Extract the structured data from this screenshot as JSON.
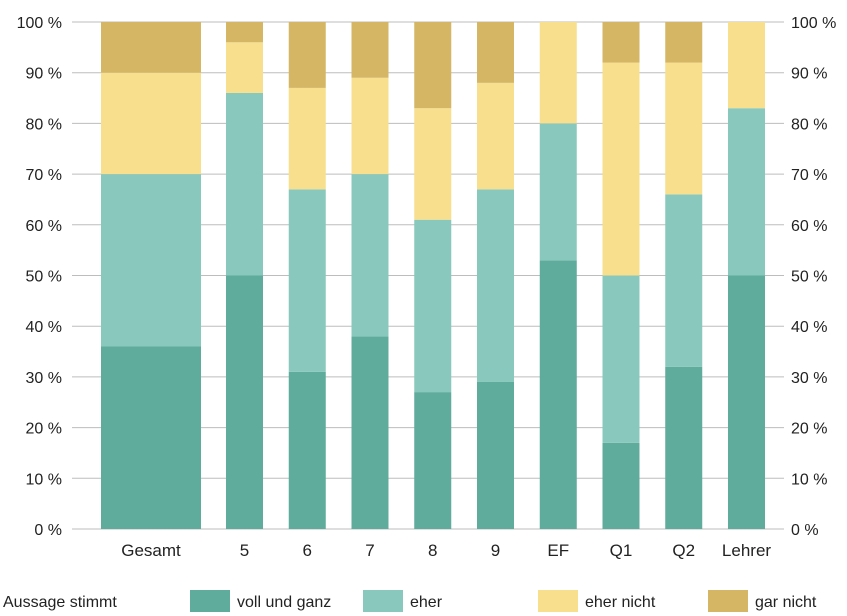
{
  "chart_data": {
    "type": "bar",
    "stacked": true,
    "categories": [
      "Gesamt",
      "5",
      "6",
      "7",
      "8",
      "9",
      "EF",
      "Q1",
      "Q2",
      "Lehrer"
    ],
    "series": [
      {
        "name": "voll und ganz",
        "color": "#5fab9c",
        "values": [
          36,
          50,
          31,
          38,
          27,
          29,
          53,
          17,
          32,
          50
        ]
      },
      {
        "name": "eher",
        "color": "#89c8bc",
        "values": [
          34,
          36,
          36,
          32,
          34,
          38,
          27,
          33,
          34,
          33
        ]
      },
      {
        "name": "eher nicht",
        "color": "#f7df8e",
        "values": [
          20,
          10,
          20,
          19,
          22,
          21,
          20,
          42,
          26,
          17
        ]
      },
      {
        "name": "gar nicht",
        "color": "#d4b664",
        "values": [
          10,
          4,
          13,
          11,
          17,
          12,
          0,
          8,
          8,
          0
        ]
      }
    ],
    "yticks": [
      "0 %",
      "10 %",
      "20 %",
      "30 %",
      "40 %",
      "50 %",
      "60 %",
      "70 %",
      "80 %",
      "90 %",
      "100 %"
    ],
    "ylim": [
      0,
      100
    ],
    "grid": true,
    "legend_position": "bottom",
    "legend_title": "Aussage stimmt"
  }
}
